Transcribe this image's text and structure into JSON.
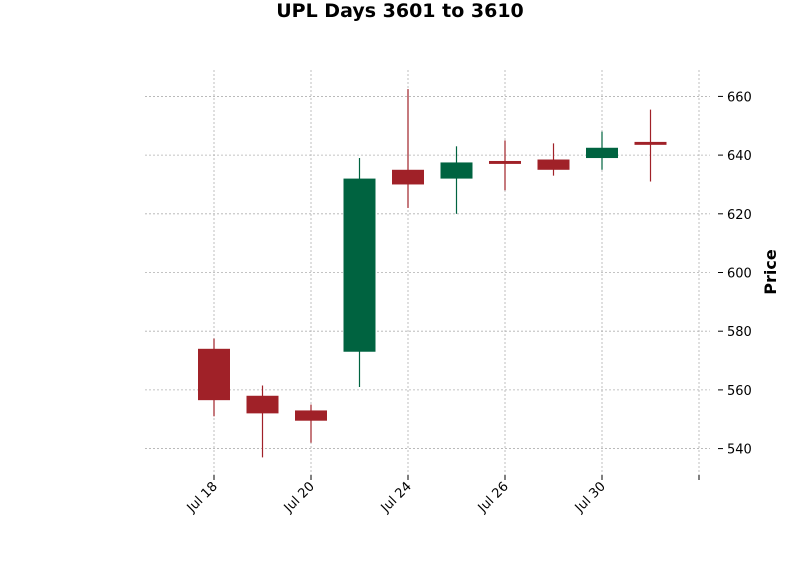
{
  "chart_data": {
    "type": "candlestick",
    "title": "UPL Days 3601 to 3610",
    "ylabel": "Price",
    "xlabel": "",
    "ylim": [
      531,
      669
    ],
    "yticks": [
      540,
      560,
      580,
      600,
      620,
      640,
      660
    ],
    "grid": true,
    "y_axis_side": "right",
    "xticks": [
      {
        "index": 0,
        "label": "Jul 18"
      },
      {
        "index": 2,
        "label": "Jul 20"
      },
      {
        "index": 4,
        "label": "Jul 24"
      },
      {
        "index": 6,
        "label": "Jul 26"
      },
      {
        "index": 8,
        "label": "Jul 30"
      },
      {
        "index": 10,
        "label": ""
      }
    ],
    "candles": [
      {
        "date": "Jul 18",
        "open": 574,
        "high": 577.5,
        "low": 551,
        "close": 556.5
      },
      {
        "date": "Jul 19",
        "open": 558,
        "high": 561.5,
        "low": 537,
        "close": 552
      },
      {
        "date": "Jul 20",
        "open": 553,
        "high": 555,
        "low": 542,
        "close": 549.5
      },
      {
        "date": "Jul 23",
        "open": 573,
        "high": 639,
        "low": 561,
        "close": 632
      },
      {
        "date": "Jul 24",
        "open": 635,
        "high": 662.5,
        "low": 622,
        "close": 630
      },
      {
        "date": "Jul 25",
        "open": 632,
        "high": 643,
        "low": 620,
        "close": 637.5
      },
      {
        "date": "Jul 26",
        "open": 638,
        "high": 645,
        "low": 628,
        "close": 637
      },
      {
        "date": "Jul 27",
        "open": 638.5,
        "high": 644,
        "low": 633,
        "close": 635
      },
      {
        "date": "Jul 30",
        "open": 639,
        "high": 648,
        "low": 635,
        "close": 642.5
      },
      {
        "date": "Jul 31",
        "open": 644.5,
        "high": 655.5,
        "low": 631,
        "close": 643.5
      }
    ],
    "colors": {
      "up": "#006340",
      "down": "#a02128"
    }
  }
}
